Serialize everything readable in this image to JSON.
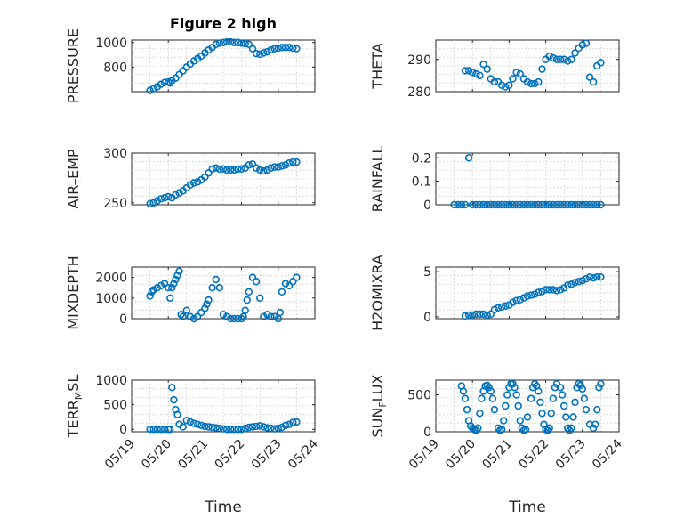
{
  "title": "Figure 2 high",
  "colors": {
    "marker": "#0072bd",
    "axis": "#262626",
    "grid": "#c8c8c8"
  },
  "x_ticks": [
    "05/19",
    "05/20",
    "05/21",
    "05/22",
    "05/23",
    "05/24"
  ],
  "xlabel": "Time",
  "chart_data": [
    {
      "type": "scatter",
      "ylabel": "PRESSURE",
      "ylabel_sub": "",
      "ylabel_tail": "",
      "title": "Figure 2 high",
      "xlim": [
        0,
        5
      ],
      "ylim": [
        600,
        1020
      ],
      "yticks": [
        800,
        1000
      ],
      "grid": true,
      "x": [
        0.5,
        0.6,
        0.7,
        0.8,
        0.9,
        1.0,
        1.05,
        1.1,
        1.2,
        1.3,
        1.4,
        1.5,
        1.6,
        1.7,
        1.8,
        1.9,
        2.0,
        2.1,
        2.2,
        2.3,
        2.4,
        2.5,
        2.6,
        2.7,
        2.8,
        2.9,
        3.0,
        3.1,
        3.2,
        3.3,
        3.4,
        3.5,
        3.6,
        3.7,
        3.8,
        3.9,
        4.0,
        4.1,
        4.2,
        4.3,
        4.4,
        4.5
      ],
      "y": [
        610,
        625,
        640,
        660,
        675,
        680,
        670,
        690,
        710,
        740,
        770,
        800,
        825,
        850,
        870,
        890,
        915,
        940,
        960,
        985,
        995,
        1000,
        1005,
        1005,
        1000,
        1000,
        995,
        990,
        985,
        950,
        910,
        905,
        915,
        925,
        940,
        950,
        955,
        960,
        960,
        960,
        955,
        950
      ]
    },
    {
      "type": "scatter",
      "ylabel": "THETA",
      "ylabel_sub": "",
      "ylabel_tail": "",
      "xlim": [
        0,
        5
      ],
      "ylim": [
        280,
        296
      ],
      "yticks": [
        280,
        290
      ],
      "grid": true,
      "x": [
        0.8,
        0.9,
        1.0,
        1.1,
        1.2,
        1.3,
        1.4,
        1.5,
        1.6,
        1.7,
        1.8,
        1.9,
        2.0,
        2.1,
        2.2,
        2.3,
        2.4,
        2.5,
        2.6,
        2.7,
        2.8,
        2.9,
        3.0,
        3.1,
        3.2,
        3.3,
        3.4,
        3.5,
        3.6,
        3.7,
        3.8,
        3.9,
        4.0,
        4.1,
        4.2,
        4.3,
        4.4,
        4.5
      ],
      "y": [
        286.5,
        286.5,
        286,
        285.5,
        285,
        288.5,
        287,
        284,
        283,
        283,
        282,
        281.5,
        282,
        284,
        286,
        285.5,
        284,
        283,
        282.5,
        282.5,
        283,
        287,
        290,
        291,
        290.5,
        290,
        290,
        290,
        289.5,
        290,
        292,
        293.5,
        294.5,
        295,
        284.5,
        283,
        288,
        289
      ]
    },
    {
      "type": "scatter",
      "ylabel": "AIR",
      "ylabel_sub": "T",
      "ylabel_tail": "EMP",
      "xlim": [
        0,
        5
      ],
      "ylim": [
        248,
        300
      ],
      "yticks": [
        250,
        300
      ],
      "grid": true,
      "x": [
        0.5,
        0.6,
        0.7,
        0.8,
        0.9,
        1.0,
        1.1,
        1.2,
        1.3,
        1.4,
        1.5,
        1.6,
        1.7,
        1.8,
        1.9,
        2.0,
        2.1,
        2.2,
        2.3,
        2.4,
        2.5,
        2.6,
        2.7,
        2.8,
        2.9,
        3.0,
        3.1,
        3.2,
        3.3,
        3.4,
        3.5,
        3.6,
        3.7,
        3.8,
        3.9,
        4.0,
        4.1,
        4.2,
        4.3,
        4.4,
        4.5
      ],
      "y": [
        249,
        250,
        252,
        254,
        255,
        256,
        255,
        258,
        260,
        262,
        265,
        268,
        270,
        271,
        273,
        276,
        280,
        284,
        285,
        284,
        284,
        283,
        283,
        283,
        284,
        284,
        285,
        288,
        289,
        285,
        283,
        282,
        283,
        285,
        286,
        286,
        287,
        288,
        290,
        291,
        291
      ]
    },
    {
      "type": "scatter",
      "ylabel": "RAINFALL",
      "ylabel_sub": "",
      "ylabel_tail": "",
      "xlim": [
        0,
        5
      ],
      "ylim": [
        0,
        0.22
      ],
      "yticks": [
        0,
        0.1,
        0.2
      ],
      "grid": true,
      "x": [
        0.5,
        0.6,
        0.7,
        0.8,
        0.9,
        1.0,
        1.1,
        1.2,
        1.3,
        1.4,
        1.5,
        1.6,
        1.7,
        1.8,
        1.9,
        2.0,
        2.1,
        2.2,
        2.3,
        2.4,
        2.5,
        2.6,
        2.7,
        2.8,
        2.9,
        3.0,
        3.1,
        3.2,
        3.3,
        3.4,
        3.5,
        3.6,
        3.7,
        3.8,
        3.9,
        4.0,
        4.1,
        4.2,
        4.3,
        4.4,
        4.5
      ],
      "y": [
        0,
        0,
        0,
        0,
        0.2,
        0,
        0,
        0,
        0,
        0,
        0,
        0,
        0,
        0,
        0,
        0,
        0,
        0,
        0,
        0,
        0,
        0,
        0,
        0,
        0,
        0,
        0,
        0,
        0,
        0,
        0,
        0,
        0,
        0,
        0,
        0,
        0,
        0,
        0,
        0,
        0
      ]
    },
    {
      "type": "scatter",
      "ylabel": "MIXDEPTH",
      "ylabel_sub": "",
      "ylabel_tail": "",
      "xlim": [
        0,
        5
      ],
      "ylim": [
        0,
        2500
      ],
      "yticks": [
        0,
        1000,
        2000
      ],
      "grid": true,
      "x": [
        0.5,
        0.55,
        0.6,
        0.7,
        0.8,
        0.9,
        1.0,
        1.05,
        1.1,
        1.15,
        1.2,
        1.25,
        1.3,
        1.35,
        1.4,
        1.5,
        1.6,
        1.7,
        1.8,
        1.9,
        2.0,
        2.05,
        2.1,
        2.2,
        2.3,
        2.4,
        2.5,
        2.6,
        2.7,
        2.8,
        2.9,
        3.0,
        3.05,
        3.1,
        3.15,
        3.2,
        3.3,
        3.4,
        3.5,
        3.6,
        3.7,
        3.8,
        3.9,
        4.0,
        4.05,
        4.1,
        4.2,
        4.3,
        4.4,
        4.5
      ],
      "y": [
        1100,
        1300,
        1400,
        1500,
        1600,
        1700,
        1500,
        1000,
        1500,
        1700,
        1900,
        2100,
        2300,
        200,
        100,
        400,
        100,
        0,
        100,
        300,
        500,
        700,
        900,
        1500,
        1900,
        1500,
        200,
        100,
        0,
        0,
        0,
        0,
        100,
        400,
        900,
        1300,
        2000,
        1800,
        1000,
        100,
        200,
        100,
        100,
        0,
        300,
        1300,
        1700,
        1600,
        1800,
        2000
      ]
    },
    {
      "type": "scatter",
      "ylabel": "H2OMIXRA",
      "ylabel_sub": "",
      "ylabel_tail": "",
      "xlim": [
        0,
        5
      ],
      "ylim": [
        -0.2,
        5.5
      ],
      "yticks": [
        0,
        5
      ],
      "grid": true,
      "x": [
        0.8,
        0.9,
        1.0,
        1.1,
        1.2,
        1.3,
        1.4,
        1.5,
        1.6,
        1.7,
        1.8,
        1.9,
        2.0,
        2.1,
        2.2,
        2.3,
        2.4,
        2.5,
        2.6,
        2.7,
        2.8,
        2.9,
        3.0,
        3.1,
        3.2,
        3.3,
        3.4,
        3.5,
        3.6,
        3.7,
        3.8,
        3.9,
        4.0,
        4.1,
        4.2,
        4.3,
        4.4,
        4.5
      ],
      "y": [
        0.1,
        0.2,
        0.2,
        0.3,
        0.3,
        0.3,
        0.2,
        0.3,
        0.8,
        1.0,
        1.1,
        1.2,
        1.3,
        1.6,
        1.8,
        1.9,
        2.1,
        2.3,
        2.4,
        2.5,
        2.7,
        2.8,
        3.0,
        3.0,
        3.0,
        2.9,
        3.0,
        3.2,
        3.5,
        3.6,
        3.8,
        3.9,
        4.0,
        4.2,
        4.4,
        4.3,
        4.4,
        4.4
      ]
    },
    {
      "type": "scatter",
      "ylabel": "TERR",
      "ylabel_sub": "M",
      "ylabel_tail": "SL",
      "xlim": [
        0,
        5
      ],
      "ylim": [
        -50,
        1000
      ],
      "yticks": [
        0,
        500,
        1000
      ],
      "grid": true,
      "x": [
        0.5,
        0.6,
        0.7,
        0.8,
        0.9,
        1.0,
        1.05,
        1.1,
        1.15,
        1.2,
        1.25,
        1.3,
        1.4,
        1.5,
        1.6,
        1.7,
        1.8,
        1.9,
        2.0,
        2.1,
        2.2,
        2.3,
        2.4,
        2.5,
        2.6,
        2.7,
        2.8,
        2.9,
        3.0,
        3.1,
        3.2,
        3.3,
        3.4,
        3.5,
        3.6,
        3.7,
        3.8,
        3.9,
        4.0,
        4.1,
        4.2,
        4.3,
        4.4,
        4.5
      ],
      "y": [
        0,
        0,
        0,
        0,
        0,
        0,
        0,
        850,
        600,
        400,
        300,
        100,
        50,
        180,
        150,
        120,
        100,
        80,
        60,
        50,
        40,
        30,
        20,
        10,
        0,
        0,
        0,
        0,
        0,
        20,
        40,
        50,
        60,
        70,
        50,
        30,
        20,
        10,
        20,
        40,
        80,
        100,
        140,
        150
      ]
    },
    {
      "type": "scatter",
      "ylabel": "SUN",
      "ylabel_sub": "F",
      "ylabel_tail": "LUX",
      "xlim": [
        0,
        5
      ],
      "ylim": [
        0,
        700
      ],
      "yticks": [
        0,
        500
      ],
      "grid": true,
      "x": [
        0.7,
        0.75,
        0.8,
        0.85,
        0.9,
        0.95,
        1.0,
        1.05,
        1.1,
        1.15,
        1.2,
        1.25,
        1.3,
        1.35,
        1.4,
        1.45,
        1.5,
        1.55,
        1.6,
        1.7,
        1.75,
        1.8,
        1.85,
        1.9,
        1.95,
        2.0,
        2.05,
        2.1,
        2.15,
        2.2,
        2.25,
        2.3,
        2.35,
        2.4,
        2.45,
        2.5,
        2.6,
        2.65,
        2.7,
        2.75,
        2.8,
        2.85,
        2.9,
        2.95,
        3.0,
        3.05,
        3.1,
        3.15,
        3.2,
        3.25,
        3.3,
        3.4,
        3.45,
        3.5,
        3.55,
        3.6,
        3.65,
        3.7,
        3.75,
        3.8,
        3.85,
        3.9,
        3.95,
        4.0,
        4.05,
        4.1,
        4.2,
        4.3,
        4.35,
        4.4,
        4.45,
        4.5
      ],
      "y": [
        620,
        550,
        450,
        300,
        150,
        80,
        50,
        30,
        20,
        50,
        250,
        450,
        550,
        620,
        630,
        600,
        550,
        450,
        300,
        50,
        20,
        30,
        150,
        350,
        500,
        600,
        650,
        650,
        600,
        500,
        350,
        150,
        50,
        20,
        30,
        200,
        450,
        600,
        650,
        620,
        550,
        400,
        250,
        100,
        30,
        20,
        50,
        250,
        450,
        600,
        650,
        600,
        500,
        350,
        200,
        50,
        20,
        50,
        200,
        400,
        600,
        650,
        630,
        580,
        450,
        300,
        100,
        50,
        100,
        300,
        600,
        650
      ]
    }
  ]
}
